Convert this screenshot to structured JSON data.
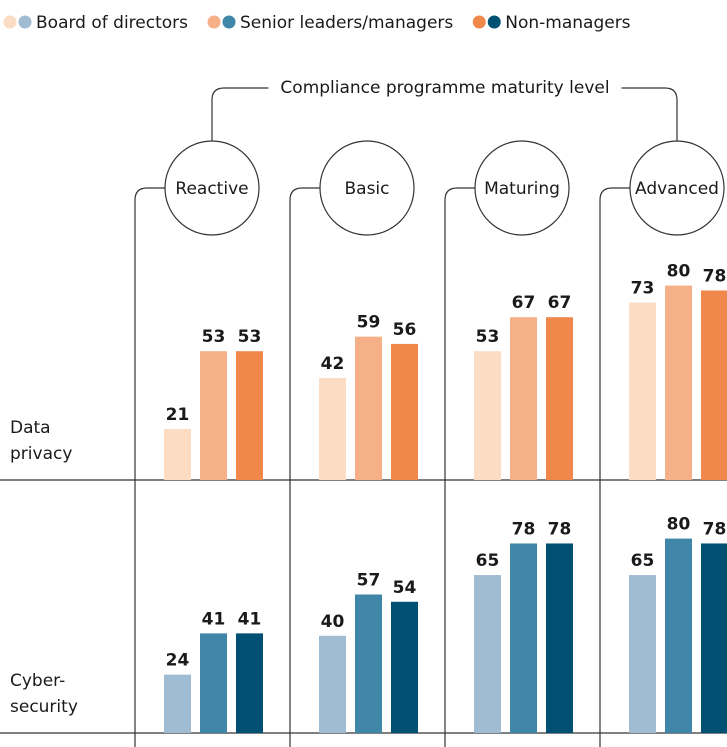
{
  "chart_data": {
    "type": "bar",
    "title": "Compliance programme maturity level",
    "categories": [
      "Reactive",
      "Basic",
      "Maturing",
      "Advanced"
    ],
    "ylim": [
      0,
      100
    ],
    "panels": [
      {
        "name": "Data privacy",
        "series": [
          {
            "name": "Board of directors",
            "color": "#fddcc4",
            "values": [
              21,
              42,
              53,
              73
            ]
          },
          {
            "name": "Senior leaders/managers",
            "color": "#f6b088",
            "values": [
              53,
              59,
              67,
              80
            ]
          },
          {
            "name": "Non-managers",
            "color": "#f0874b",
            "values": [
              53,
              56,
              67,
              78
            ]
          }
        ]
      },
      {
        "name": "Cyber-security",
        "series": [
          {
            "name": "Board of directors",
            "color": "#a0bcd3",
            "values": [
              24,
              40,
              65,
              65
            ]
          },
          {
            "name": "Senior leaders/managers",
            "color": "#3f86a8",
            "values": [
              41,
              57,
              78,
              80
            ]
          },
          {
            "name": "Non-managers",
            "color": "#005073",
            "values": [
              41,
              54,
              78,
              78
            ]
          }
        ]
      }
    ]
  }
}
